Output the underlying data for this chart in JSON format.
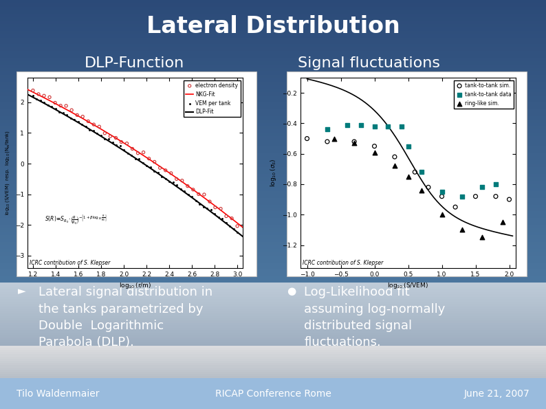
{
  "title": "Lateral Distribution",
  "title_color": "#FFFFFF",
  "title_fontsize": 24,
  "bg_dark_blue": [
    0.17,
    0.29,
    0.47
  ],
  "bg_mid_blue": [
    0.3,
    0.45,
    0.62
  ],
  "bg_light_blue": [
    0.52,
    0.68,
    0.82
  ],
  "footer_color": "#aaccee",
  "footer_left": "Tilo Waldenmaier",
  "footer_center": "RICAP Conference Rome",
  "footer_right": "June 21, 2007",
  "footer_fontsize": 10,
  "left_panel_title": "DLP-Function",
  "right_panel_title": "Signal fluctuations",
  "panel_title_color": "#FFFFFF",
  "panel_title_fontsize": 16,
  "left_bullet_char": "►",
  "left_bullet_text": "Lateral signal distribution in\nthe tanks parametrized by\nDouble  Logarithmic\nParabola (DLP).",
  "right_bullet_char": "●",
  "right_bullet_text": "Log-Likelihood fit\nassuming log-normally\ndistributed signal\nfluctuations.",
  "bullet_color": "#FFFFFF",
  "bullet_fontsize": 13,
  "icrc_text": "ICRC contribution of S. Klepser"
}
